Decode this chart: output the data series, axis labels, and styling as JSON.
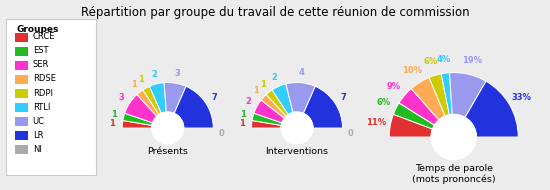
{
  "title": "Répartition par groupe du travail de cette réunion de commission",
  "groups": [
    "CRCE",
    "EST",
    "SER",
    "RDSE",
    "RDPI",
    "RTLI",
    "UC",
    "LR",
    "NI"
  ],
  "colors": [
    "#e03030",
    "#22bb22",
    "#ff33cc",
    "#ffaa55",
    "#cccc00",
    "#33ccff",
    "#9999ee",
    "#2233dd",
    "#aaaaaa"
  ],
  "label_colors": [
    "#e03030",
    "#22bb22",
    "#ff33cc",
    "#ffaa55",
    "#cccc00",
    "#33ccff",
    "#9999ee",
    "#2233dd",
    "#aaaaaa"
  ],
  "presents": [
    1,
    1,
    3,
    1,
    1,
    2,
    3,
    7,
    0
  ],
  "interventions": [
    1,
    1,
    2,
    1,
    1,
    2,
    4,
    7,
    0
  ],
  "temps_parole_pct": [
    11,
    6,
    9,
    10,
    6,
    4,
    18,
    32,
    0
  ],
  "chart_labels": [
    "Présents",
    "Interventions",
    "Temps de parole\n(mots prononcés)"
  ],
  "background": "#ececec",
  "legend_bg": "#ffffff"
}
